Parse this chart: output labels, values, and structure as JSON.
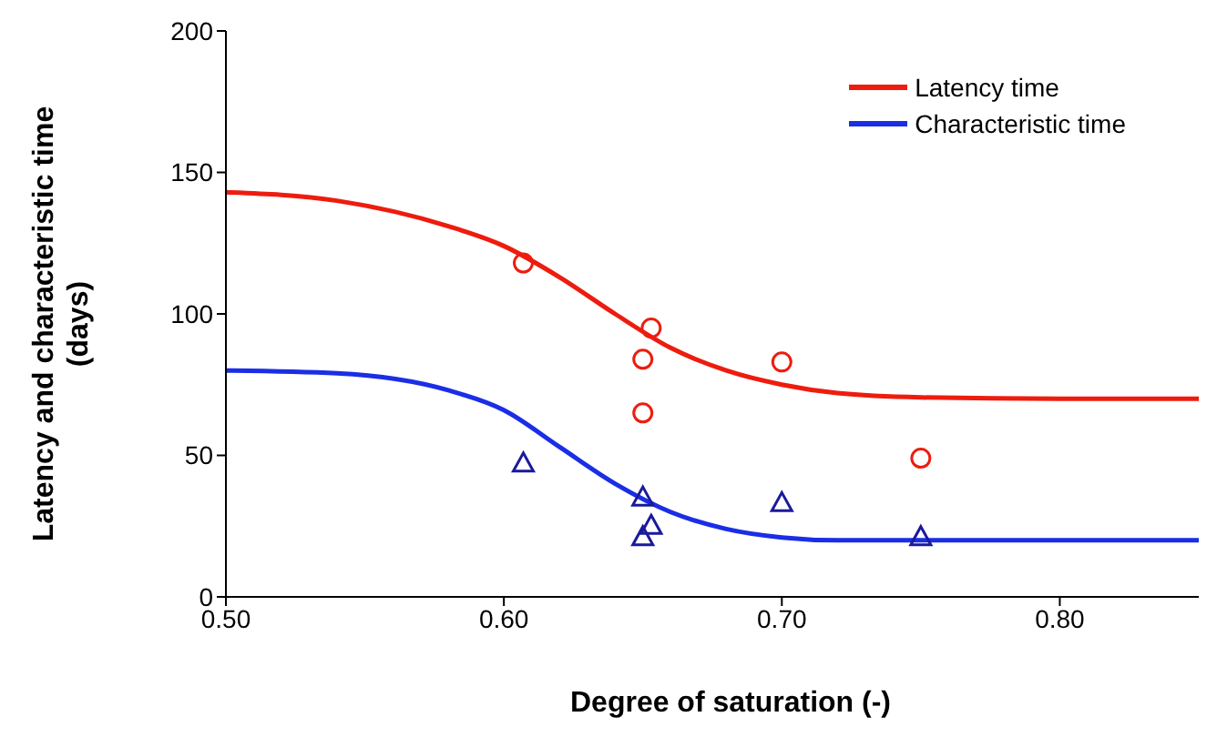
{
  "chart_data": {
    "type": "line",
    "xlabel": "Degree of saturation (-)",
    "ylabel": "Latency and characteristic time\n(days)",
    "xlim": [
      0.5,
      0.85
    ],
    "xticks": [
      {
        "value": 0.5,
        "label": "0.50"
      },
      {
        "value": 0.6,
        "label": "0.60"
      },
      {
        "value": 0.7,
        "label": "0.70"
      },
      {
        "value": 0.8,
        "label": "0.80"
      }
    ],
    "ylim": [
      0,
      200
    ],
    "yticks": [
      0,
      50,
      100,
      150,
      200
    ],
    "grid": false,
    "legend": "top right",
    "series": [
      {
        "name": "Latency time",
        "color": "#ee1c0e",
        "marker": "none",
        "x": [
          0.5,
          0.54,
          0.58,
          0.6,
          0.62,
          0.64,
          0.66,
          0.68,
          0.7,
          0.72,
          0.75,
          0.8,
          0.85
        ],
        "values": [
          143,
          140,
          131,
          124,
          113,
          100,
          88,
          80,
          75,
          72,
          70.5,
          70,
          70
        ]
      },
      {
        "name": "Characteristic time",
        "color": "#1a2ee6",
        "marker": "none",
        "x": [
          0.5,
          0.54,
          0.58,
          0.6,
          0.62,
          0.64,
          0.66,
          0.68,
          0.7,
          0.72,
          0.75,
          0.8,
          0.85
        ],
        "values": [
          80,
          79,
          73,
          66,
          53,
          40,
          30,
          24,
          21,
          20,
          20,
          20,
          20
        ]
      },
      {
        "type": "scatter",
        "color": "#ee1c0e",
        "marker": "circle",
        "x": [
          0.607,
          0.653,
          0.65,
          0.65,
          0.7,
          0.75
        ],
        "values": [
          118,
          95,
          84,
          65,
          83,
          49
        ]
      },
      {
        "type": "scatter",
        "color": "#1a1a9c",
        "marker": "triangle",
        "x": [
          0.607,
          0.65,
          0.653,
          0.65,
          0.7,
          0.75
        ],
        "values": [
          47,
          35,
          25,
          21,
          33,
          21
        ]
      }
    ]
  }
}
